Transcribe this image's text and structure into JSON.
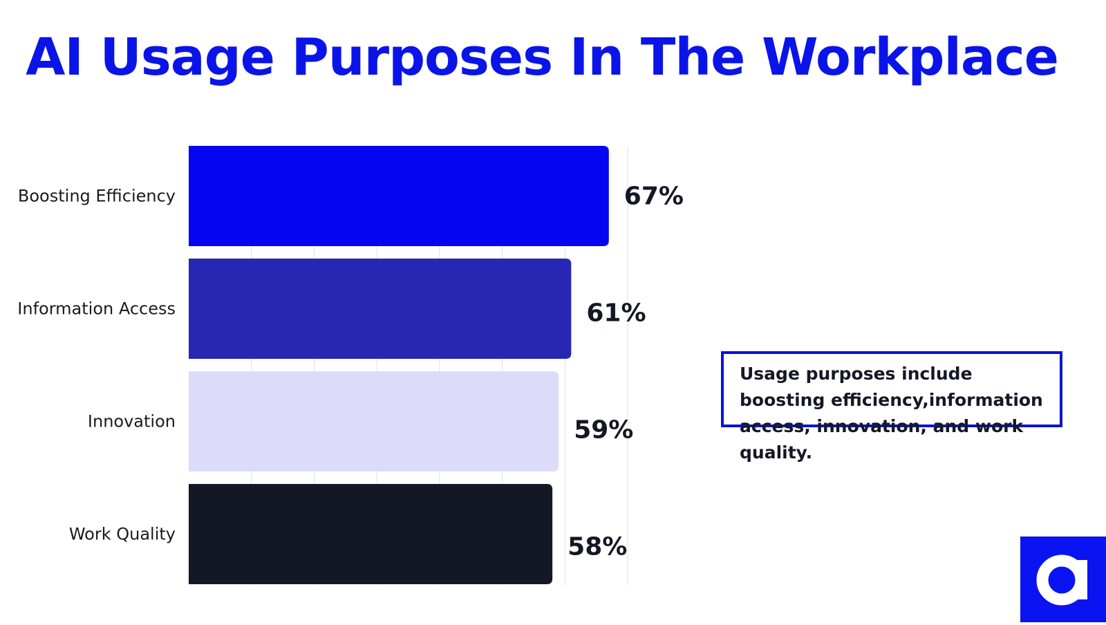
{
  "title": "AI Usage Purposes In The Workplace",
  "note": "Usage purposes include boosting efficiency,information access, innovation, and work quality.",
  "colors": {
    "title": "#0a14e8",
    "bars": [
      "#0505f2",
      "#2727b3",
      "#dcdcfa",
      "#141824"
    ],
    "grid": "#e0e0e0",
    "note_border": "#0a14d0",
    "logo_bg": "#0a14f2"
  },
  "logo_icon": "letter-a-logo",
  "chart_data": {
    "type": "bar",
    "orientation": "horizontal",
    "categories": [
      "Boosting Efficiency",
      "Information Access",
      "Innovation",
      "Work Quality"
    ],
    "values": [
      67,
      61,
      59,
      58
    ],
    "value_labels": [
      "67%",
      "61%",
      "59%",
      "58%"
    ],
    "xlim": [
      0,
      70
    ],
    "grid": true,
    "legend": "none"
  }
}
